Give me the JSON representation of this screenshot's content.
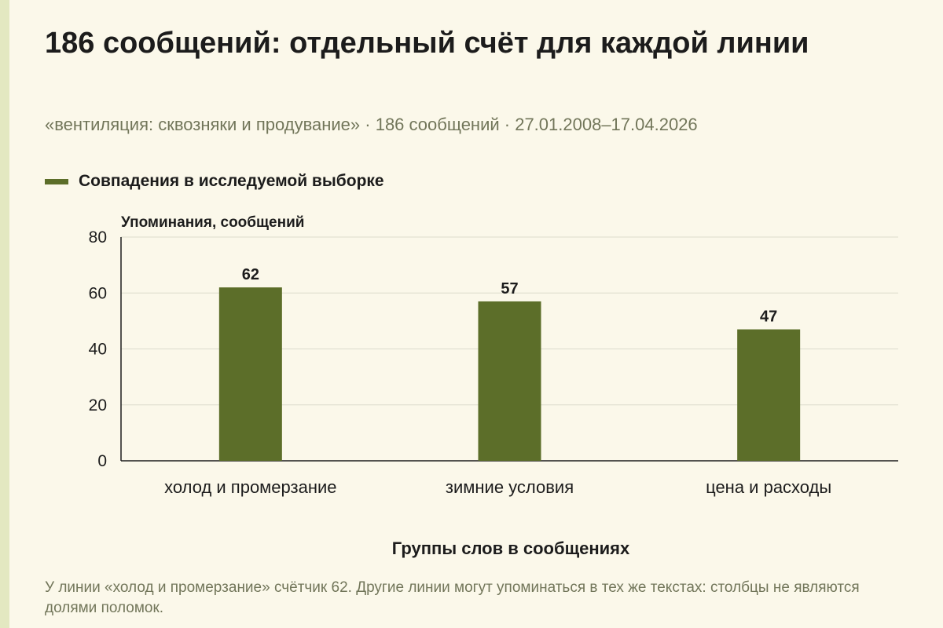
{
  "title": "186 сообщений: отдельный счёт для каждой линии",
  "subtitle": "«вентиляция: сквозняки и продувание» · 186 сообщений · 27.01.2008–17.04.2026",
  "footnote": "У линии «холод и промерзание» счётчик 62. Другие линии могут упоминаться в тех же текстах: столбцы не являются долями поломок.",
  "colors": {
    "bar": "#5c6e29",
    "grid": "#dcdccc",
    "axis": "#1c1c1c",
    "background": "#fbf8ea"
  },
  "chart_data": {
    "type": "bar",
    "categories": [
      "холод и промерзание",
      "зимние условия",
      "цена и расходы"
    ],
    "series": [
      {
        "name": "Совпадения в исследуемой выборке",
        "values": [
          62,
          57,
          47
        ]
      }
    ],
    "xlabel": "Группы слов в сообщениях",
    "ylabel": "Упоминания, сообщений",
    "ylim": [
      0,
      80
    ],
    "yticks": [
      0,
      20,
      40,
      60,
      80
    ],
    "grid": true,
    "legend": "top-left",
    "data_labels": true
  }
}
